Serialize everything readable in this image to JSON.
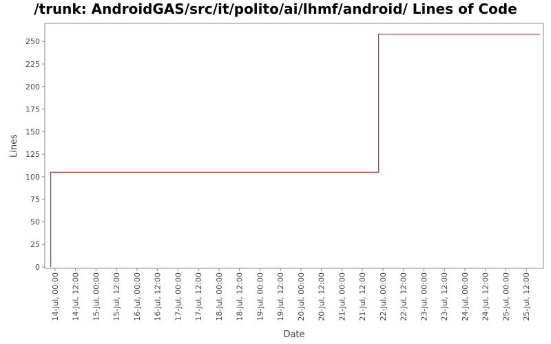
{
  "chart_data": {
    "type": "line",
    "title": "/trunk: AndroidGAS/src/it/polito/ai/lhmf/android/ Lines of Code",
    "xlabel": "Date",
    "ylabel": "Lines",
    "ylim": [
      0,
      270
    ],
    "yticks": [
      0,
      25,
      50,
      75,
      100,
      125,
      150,
      175,
      200,
      225,
      250
    ],
    "x_range": [
      "2012-07-13T18:00",
      "2012-07-25T22:00"
    ],
    "xticks": [
      {
        "x": "2012-07-14T00:00",
        "label": "14-Jul, 00:00"
      },
      {
        "x": "2012-07-14T12:00",
        "label": "14-Jul, 12:00"
      },
      {
        "x": "2012-07-15T00:00",
        "label": "15-Jul, 00:00"
      },
      {
        "x": "2012-07-15T12:00",
        "label": "15-Jul, 12:00"
      },
      {
        "x": "2012-07-16T00:00",
        "label": "16-Jul, 00:00"
      },
      {
        "x": "2012-07-16T12:00",
        "label": "16-Jul, 12:00"
      },
      {
        "x": "2012-07-17T00:00",
        "label": "17-Jul, 00:00"
      },
      {
        "x": "2012-07-17T12:00",
        "label": "17-Jul, 12:00"
      },
      {
        "x": "2012-07-18T00:00",
        "label": "18-Jul, 00:00"
      },
      {
        "x": "2012-07-18T12:00",
        "label": "18-Jul, 12:00"
      },
      {
        "x": "2012-07-19T00:00",
        "label": "19-Jul, 00:00"
      },
      {
        "x": "2012-07-19T12:00",
        "label": "19-Jul, 12:00"
      },
      {
        "x": "2012-07-20T00:00",
        "label": "20-Jul, 00:00"
      },
      {
        "x": "2012-07-20T12:00",
        "label": "20-Jul, 12:00"
      },
      {
        "x": "2012-07-21T00:00",
        "label": "21-Jul, 00:00"
      },
      {
        "x": "2012-07-21T12:00",
        "label": "21-Jul, 12:00"
      },
      {
        "x": "2012-07-22T00:00",
        "label": "22-Jul, 00:00"
      },
      {
        "x": "2012-07-22T12:00",
        "label": "22-Jul, 12:00"
      },
      {
        "x": "2012-07-23T00:00",
        "label": "23-Jul, 00:00"
      },
      {
        "x": "2012-07-23T12:00",
        "label": "23-Jul, 12:00"
      },
      {
        "x": "2012-07-24T00:00",
        "label": "24-Jul, 00:00"
      },
      {
        "x": "2012-07-24T12:00",
        "label": "24-Jul, 12:00"
      },
      {
        "x": "2012-07-25T00:00",
        "label": "25-Jul, 00:00"
      },
      {
        "x": "2012-07-25T12:00",
        "label": "25-Jul, 12:00"
      }
    ],
    "series": [
      {
        "step": true,
        "color": "#cc0000",
        "points": [
          {
            "x": "2012-07-13T21:30",
            "y": 0
          },
          {
            "x": "2012-07-13T21:30",
            "y": 105
          },
          {
            "x": "2012-07-21T21:30",
            "y": 105
          },
          {
            "x": "2012-07-21T21:30",
            "y": 258
          },
          {
            "x": "2012-07-25T20:00",
            "y": 258
          }
        ]
      }
    ],
    "grid": false,
    "legend": "none"
  }
}
